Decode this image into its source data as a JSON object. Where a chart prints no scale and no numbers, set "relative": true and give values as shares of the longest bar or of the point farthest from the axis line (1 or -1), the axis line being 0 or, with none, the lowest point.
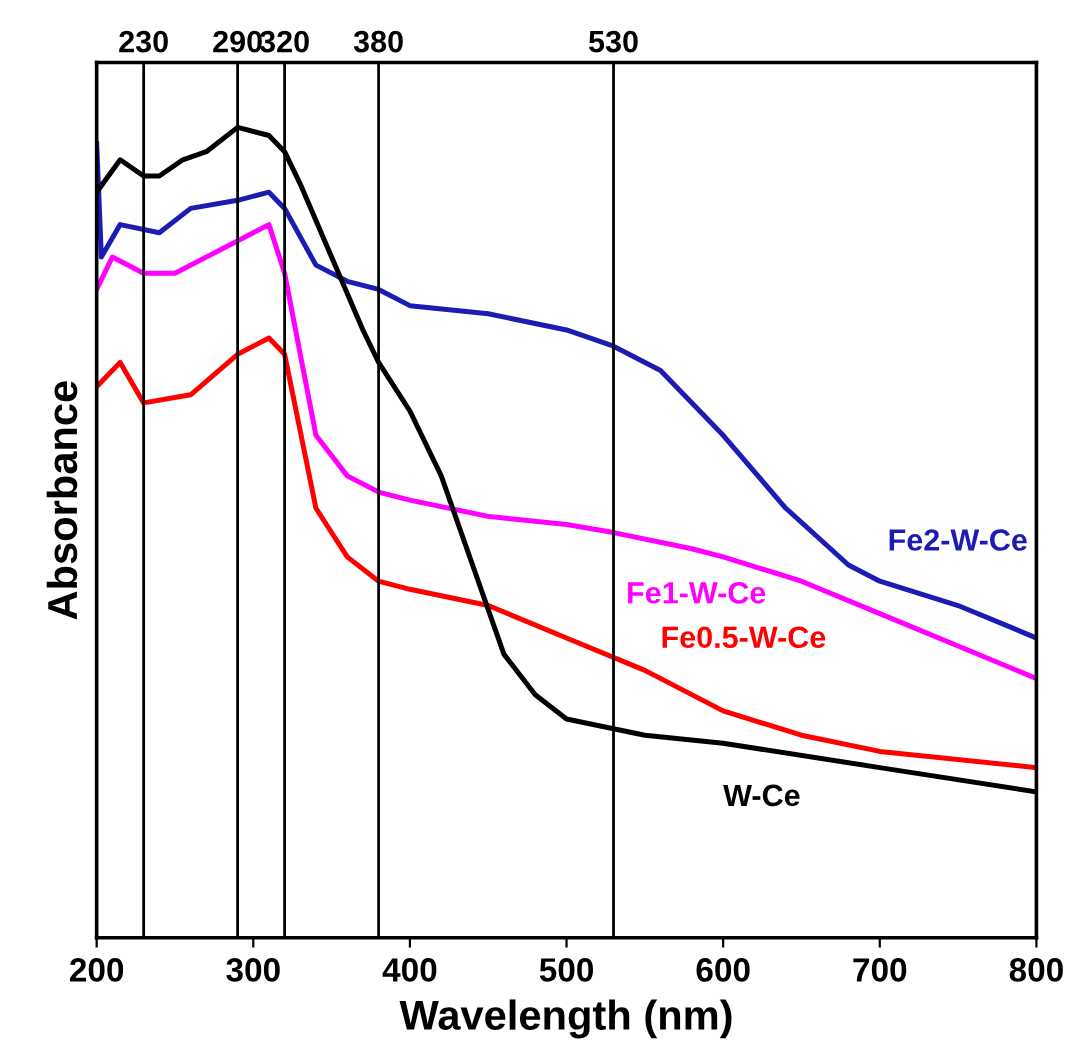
{
  "chart_data": {
    "type": "line",
    "relative": true,
    "xlabel": "Wavelength (nm)",
    "ylabel": "Absorbance",
    "xlim": [
      200,
      800
    ],
    "xticks": [
      200,
      300,
      400,
      500,
      600,
      700,
      800
    ],
    "grid": false,
    "legend": false,
    "marker": "none",
    "line_style": "solid",
    "tick_labels": "x",
    "series": [
      {
        "name": "Fe2-W-Ce",
        "color": "#1c1cb4",
        "x": [
          200,
          203,
          215,
          240,
          260,
          290,
          310,
          320,
          340,
          360,
          380,
          400,
          450,
          500,
          530,
          560,
          600,
          640,
          680,
          700,
          750,
          800
        ],
        "values": [
          0.98,
          0.84,
          0.88,
          0.87,
          0.9,
          0.91,
          0.92,
          0.9,
          0.83,
          0.81,
          0.8,
          0.78,
          0.77,
          0.75,
          0.73,
          0.7,
          0.62,
          0.53,
          0.46,
          0.44,
          0.41,
          0.37
        ]
      },
      {
        "name": "Fe1-W-Ce",
        "color": "#ff00ff",
        "x": [
          200,
          210,
          230,
          250,
          280,
          300,
          310,
          320,
          340,
          360,
          380,
          400,
          450,
          500,
          530,
          580,
          600,
          650,
          700,
          750,
          800
        ],
        "values": [
          0.8,
          0.84,
          0.82,
          0.82,
          0.85,
          0.87,
          0.88,
          0.82,
          0.62,
          0.57,
          0.55,
          0.54,
          0.52,
          0.51,
          0.5,
          0.48,
          0.47,
          0.44,
          0.4,
          0.36,
          0.32
        ]
      },
      {
        "name": "Fe0.5-W-Ce",
        "color": "#ff0000",
        "x": [
          200,
          215,
          230,
          260,
          290,
          310,
          320,
          340,
          360,
          380,
          400,
          450,
          500,
          550,
          600,
          650,
          700,
          800
        ],
        "values": [
          0.68,
          0.71,
          0.66,
          0.67,
          0.72,
          0.74,
          0.72,
          0.53,
          0.47,
          0.44,
          0.43,
          0.41,
          0.37,
          0.33,
          0.28,
          0.25,
          0.23,
          0.21
        ]
      },
      {
        "name": "W-Ce",
        "color": "#000000",
        "x": [
          200,
          215,
          230,
          240,
          255,
          270,
          290,
          310,
          320,
          330,
          350,
          370,
          380,
          400,
          420,
          440,
          460,
          480,
          500,
          550,
          600,
          700,
          800
        ],
        "values": [
          0.92,
          0.96,
          0.94,
          0.94,
          0.96,
          0.97,
          1.0,
          0.99,
          0.97,
          0.93,
          0.84,
          0.75,
          0.71,
          0.65,
          0.57,
          0.46,
          0.35,
          0.3,
          0.27,
          0.25,
          0.24,
          0.21,
          0.18
        ]
      }
    ],
    "ref_lines": [
      {
        "axis": "x",
        "value": 230,
        "label": "230",
        "color": "#000000"
      },
      {
        "axis": "x",
        "value": 290,
        "label": "290",
        "color": "#000000"
      },
      {
        "axis": "x",
        "value": 320,
        "label": "320",
        "color": "#000000"
      },
      {
        "axis": "x",
        "value": 380,
        "label": "380",
        "color": "#000000"
      },
      {
        "axis": "x",
        "value": 530,
        "label": "530",
        "color": "#000000"
      }
    ]
  }
}
